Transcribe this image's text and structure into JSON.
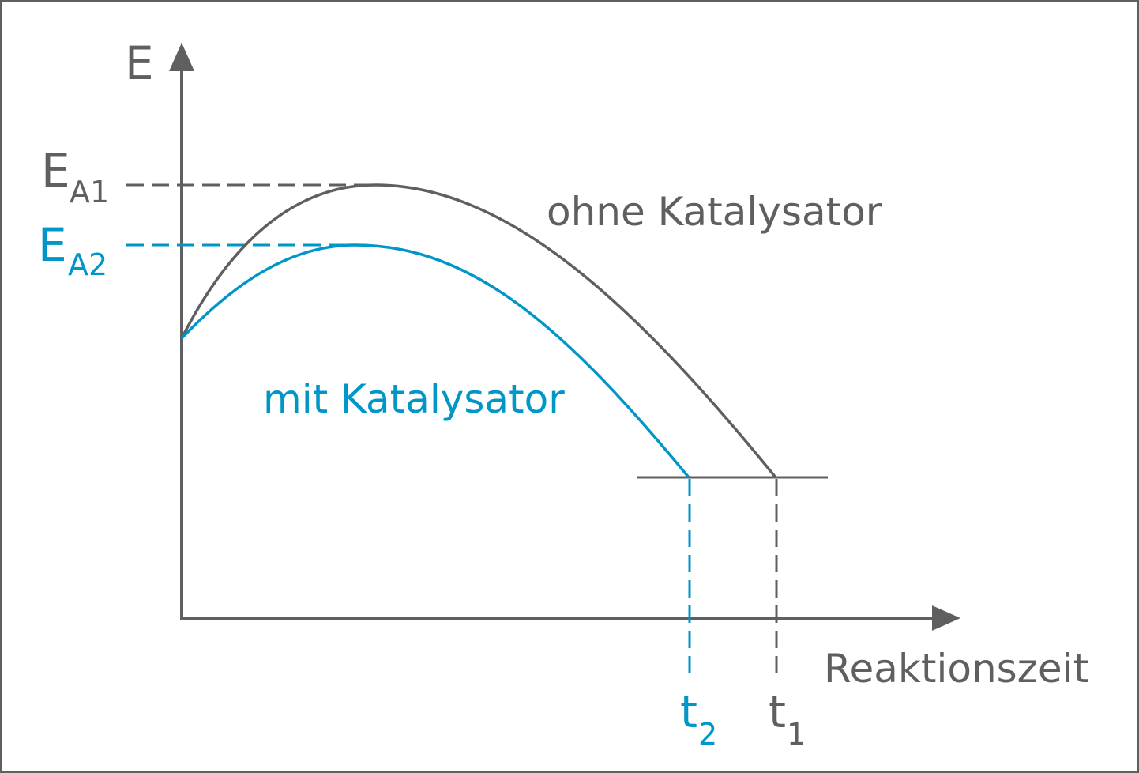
{
  "colors": {
    "gray": "#5f5f5f",
    "blue": "#0096c8"
  },
  "labels": {
    "y_axis": "E",
    "x_axis": "Reaktionszeit",
    "ea1_main": "E",
    "ea1_sub": "A1",
    "ea2_main": "E",
    "ea2_sub": "A2",
    "curve_without": "ohne Katalysator",
    "curve_with": "mit Katalysator",
    "t2_main": "t",
    "t2_sub": "2",
    "t1_main": "t",
    "t1_sub": "1"
  }
}
